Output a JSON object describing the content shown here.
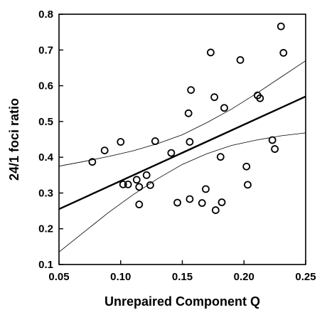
{
  "chart_data": {
    "type": "scatter",
    "xlabel": "Unrepaired Component Q",
    "ylabel": "24/1 foci ratio",
    "xlim": [
      0.05,
      0.25
    ],
    "ylim": [
      0.1,
      0.8
    ],
    "x_ticks": [
      "0.05",
      "0.10",
      "0.15",
      "0.20",
      "0.25"
    ],
    "y_ticks": [
      "0.1",
      "0.2",
      "0.3",
      "0.4",
      "0.5",
      "0.6",
      "0.7",
      "0.8"
    ],
    "grid": false,
    "legend": false,
    "points": [
      {
        "x": 0.077,
        "y": 0.387
      },
      {
        "x": 0.087,
        "y": 0.419
      },
      {
        "x": 0.1,
        "y": 0.443
      },
      {
        "x": 0.102,
        "y": 0.324
      },
      {
        "x": 0.106,
        "y": 0.324
      },
      {
        "x": 0.113,
        "y": 0.337
      },
      {
        "x": 0.115,
        "y": 0.317
      },
      {
        "x": 0.115,
        "y": 0.268
      },
      {
        "x": 0.121,
        "y": 0.35
      },
      {
        "x": 0.124,
        "y": 0.322
      },
      {
        "x": 0.128,
        "y": 0.445
      },
      {
        "x": 0.141,
        "y": 0.412
      },
      {
        "x": 0.146,
        "y": 0.273
      },
      {
        "x": 0.155,
        "y": 0.523
      },
      {
        "x": 0.156,
        "y": 0.443
      },
      {
        "x": 0.157,
        "y": 0.588
      },
      {
        "x": 0.156,
        "y": 0.283
      },
      {
        "x": 0.166,
        "y": 0.272
      },
      {
        "x": 0.169,
        "y": 0.311
      },
      {
        "x": 0.173,
        "y": 0.693
      },
      {
        "x": 0.176,
        "y": 0.568
      },
      {
        "x": 0.177,
        "y": 0.252
      },
      {
        "x": 0.181,
        "y": 0.401
      },
      {
        "x": 0.182,
        "y": 0.274
      },
      {
        "x": 0.184,
        "y": 0.538
      },
      {
        "x": 0.197,
        "y": 0.672
      },
      {
        "x": 0.202,
        "y": 0.374
      },
      {
        "x": 0.203,
        "y": 0.323
      },
      {
        "x": 0.211,
        "y": 0.573
      },
      {
        "x": 0.213,
        "y": 0.565
      },
      {
        "x": 0.223,
        "y": 0.448
      },
      {
        "x": 0.225,
        "y": 0.423
      },
      {
        "x": 0.23,
        "y": 0.766
      },
      {
        "x": 0.232,
        "y": 0.692
      }
    ],
    "regression_line": {
      "x": [
        0.05,
        0.25
      ],
      "y": [
        0.255,
        0.57
      ]
    },
    "confidence_band": {
      "upper": {
        "x": [
          0.05,
          0.07,
          0.09,
          0.11,
          0.13,
          0.15,
          0.17,
          0.19,
          0.21,
          0.23,
          0.25
        ],
        "y": [
          0.375,
          0.388,
          0.402,
          0.418,
          0.438,
          0.463,
          0.497,
          0.535,
          0.578,
          0.624,
          0.67
        ]
      },
      "lower": {
        "x": [
          0.05,
          0.07,
          0.09,
          0.11,
          0.13,
          0.15,
          0.17,
          0.19,
          0.21,
          0.23,
          0.25
        ],
        "y": [
          0.135,
          0.19,
          0.245,
          0.295,
          0.34,
          0.38,
          0.41,
          0.433,
          0.448,
          0.46,
          0.468
        ]
      }
    }
  }
}
